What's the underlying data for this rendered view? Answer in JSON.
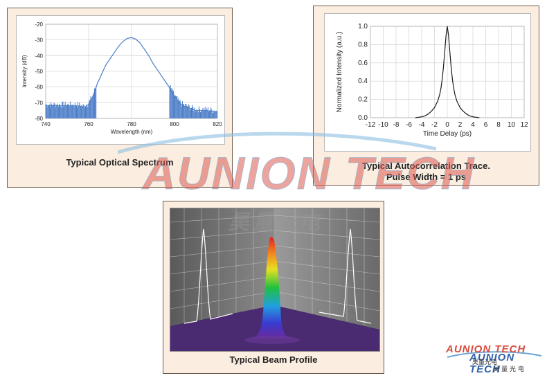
{
  "captions": {
    "spectrum": "Typical Optical Spectrum",
    "autocorr_line1": "Typical Autocorrelation Trace.",
    "autocorr_line2": "Pulse Width = 1 ps",
    "beam": "Typical Beam Profile"
  },
  "watermark": {
    "main": "AUNION TECH",
    "sub": "昊量光电"
  },
  "logo": {
    "line1": "AUNION TECH",
    "line2": "AUNION TECH",
    "sub1": "昊量光电",
    "sub2": "昊量光电"
  },
  "colors": {
    "spectrum_line": "#4a7cc7",
    "autocorr_line": "#1a1a1a",
    "panel_bg": "#fbeee0"
  },
  "chart_data": [
    {
      "type": "line",
      "xlabel": "Wavelength (nm)",
      "ylabel": "Intensity (dB)",
      "xlim": [
        740,
        820
      ],
      "ylim": [
        -80,
        -20
      ],
      "xticks": [
        "740",
        "760",
        "780",
        "800",
        "820"
      ],
      "yticks": [
        "-20",
        "-30",
        "-40",
        "-50",
        "-60",
        "-70",
        "-80"
      ],
      "grid": true,
      "series": [
        {
          "x": [
            740,
            745,
            750,
            755,
            758,
            760,
            762,
            764,
            766,
            768,
            770,
            772,
            774,
            776,
            778,
            780,
            782,
            784,
            786,
            788,
            790,
            792,
            794,
            796,
            798,
            800,
            802,
            804,
            806,
            808,
            810,
            815,
            820
          ],
          "y": [
            -72,
            -72,
            -72,
            -72,
            -73,
            -71,
            -66,
            -58,
            -52,
            -46,
            -42,
            -38,
            -34,
            -31,
            -29,
            -28.5,
            -29.5,
            -32,
            -36,
            -40,
            -45,
            -49,
            -53,
            -57,
            -61,
            -66,
            -70,
            -72,
            -73,
            -74,
            -75,
            -75,
            -76
          ]
        }
      ]
    },
    {
      "type": "line",
      "xlabel": "Time Delay (ps)",
      "ylabel": "Normalized Intensity (a.u.)",
      "xlim": [
        -12,
        12
      ],
      "ylim": [
        0,
        1
      ],
      "xticks": [
        "-12",
        "-10",
        "-8",
        "-6",
        "-4",
        "-2",
        "0",
        "2",
        "4",
        "6",
        "8",
        "10",
        "12"
      ],
      "yticks": [
        "1.0",
        "0.8",
        "0.6",
        "0.4",
        "0.2",
        "0.0"
      ],
      "grid": true,
      "series": [
        {
          "x": [
            -5,
            -4,
            -3.5,
            -3,
            -2.5,
            -2,
            -1.5,
            -1.2,
            -1,
            -0.8,
            -0.6,
            -0.4,
            -0.2,
            0,
            0.2,
            0.4,
            0.6,
            0.8,
            1,
            1.2,
            1.5,
            2,
            2.5,
            3,
            3.5,
            4,
            5
          ],
          "y": [
            0.0,
            0.01,
            0.02,
            0.04,
            0.07,
            0.11,
            0.18,
            0.25,
            0.32,
            0.42,
            0.55,
            0.72,
            0.9,
            1.0,
            0.9,
            0.72,
            0.55,
            0.42,
            0.32,
            0.25,
            0.18,
            0.11,
            0.07,
            0.04,
            0.02,
            0.01,
            0.0
          ]
        }
      ]
    }
  ]
}
